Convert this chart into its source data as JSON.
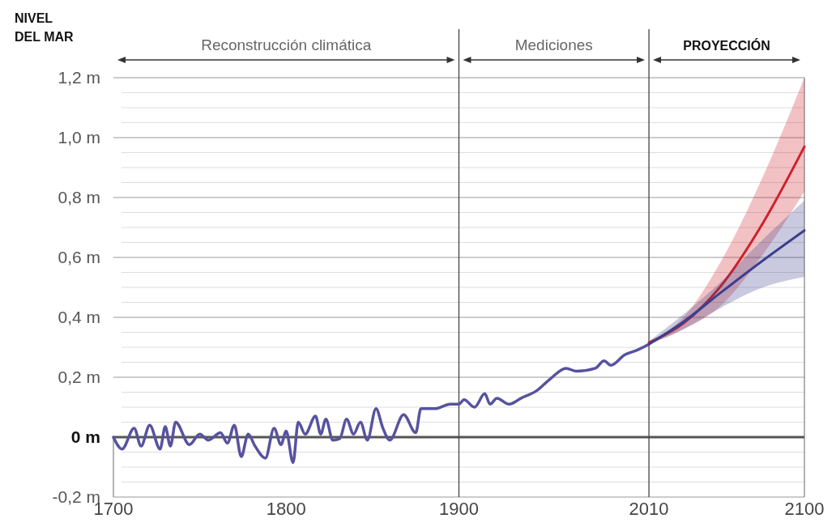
{
  "chart_data": {
    "type": "line",
    "ylabel": "NIVEL DEL MAR",
    "xlim": [
      1700,
      2100
    ],
    "xticks": [
      1700,
      1800,
      1900,
      2010,
      2100
    ],
    "ylim": [
      -0.2,
      1.2
    ],
    "yticks": [
      {
        "value": -0.2,
        "label": "-0,2 m"
      },
      {
        "value": -0.15,
        "label": null
      },
      {
        "value": -0.1,
        "label": null
      },
      {
        "value": -0.05,
        "label": null
      },
      {
        "value": 0,
        "label": "0 m"
      },
      {
        "value": 0.05,
        "label": null
      },
      {
        "value": 0.1,
        "label": null
      },
      {
        "value": 0.15,
        "label": null
      },
      {
        "value": 0.2,
        "label": "0,2 m"
      },
      {
        "value": 0.25,
        "label": null
      },
      {
        "value": 0.3,
        "label": null
      },
      {
        "value": 0.35,
        "label": null
      },
      {
        "value": 0.4,
        "label": "0,4 m"
      },
      {
        "value": 0.45,
        "label": null
      },
      {
        "value": 0.5,
        "label": null
      },
      {
        "value": 0.55,
        "label": null
      },
      {
        "value": 0.6,
        "label": "0,6 m"
      },
      {
        "value": 0.65,
        "label": null
      },
      {
        "value": 0.7,
        "label": null
      },
      {
        "value": 0.75,
        "label": null
      },
      {
        "value": 0.8,
        "label": "0,8 m"
      },
      {
        "value": 0.85,
        "label": null
      },
      {
        "value": 0.9,
        "label": null
      },
      {
        "value": 0.95,
        "label": null
      },
      {
        "value": 1.0,
        "label": "1,0 m"
      },
      {
        "value": 1.05,
        "label": null
      },
      {
        "value": 1.1,
        "label": null
      },
      {
        "value": 1.15,
        "label": null
      },
      {
        "value": 1.2,
        "label": "1,2 m"
      }
    ],
    "grid": "y",
    "line_style": "solid",
    "marker": "none",
    "ref_lines": [
      {
        "axis": "y",
        "value": 0,
        "label": null,
        "color": "#555555"
      },
      {
        "axis": "x",
        "value": 1900,
        "label": null,
        "color": "#444444"
      },
      {
        "axis": "x",
        "value": 2010,
        "label": null,
        "color": "#444444"
      }
    ],
    "annotations": [
      "Reconstrucción climática",
      "Mediciones",
      "PROYECCIÓN"
    ],
    "series": [
      {
        "color": "#57529f",
        "x": [
          1700,
          1705,
          1712,
          1716,
          1721,
          1727,
          1730,
          1733,
          1736,
          1744,
          1750,
          1755,
          1762,
          1766,
          1770,
          1774,
          1778,
          1782,
          1788,
          1793,
          1797,
          1800,
          1804,
          1807,
          1811,
          1817,
          1820,
          1823,
          1827,
          1831,
          1835,
          1839,
          1843,
          1847,
          1852,
          1856,
          1860,
          1868,
          1875,
          1878,
          1886,
          1895,
          1900,
          1903,
          1909,
          1915,
          1918,
          1922,
          1929,
          1936,
          1945,
          1953,
          1962,
          1968,
          1979,
          1984,
          1988,
          1996,
          2003,
          2010
        ],
        "values": [
          0.0,
          -0.04,
          0.03,
          -0.03,
          0.04,
          -0.04,
          0.035,
          -0.03,
          0.05,
          -0.025,
          0.01,
          -0.01,
          0.015,
          -0.02,
          0.04,
          -0.065,
          0.01,
          -0.03,
          -0.07,
          0.03,
          -0.025,
          0.02,
          -0.085,
          0.05,
          0.01,
          0.07,
          0.01,
          0.06,
          -0.01,
          -0.005,
          0.06,
          0.01,
          0.05,
          -0.01,
          0.095,
          0.03,
          -0.01,
          0.075,
          0.015,
          0.095,
          0.095,
          0.11,
          0.11,
          0.125,
          0.1,
          0.145,
          0.11,
          0.13,
          0.11,
          0.13,
          0.155,
          0.195,
          0.23,
          0.22,
          0.23,
          0.255,
          0.24,
          0.275,
          0.29,
          0.31
        ]
      },
      {
        "color": "#d0202a",
        "x": [
          2010,
          2030,
          2051,
          2076,
          2100
        ],
        "values": [
          0.315,
          0.38,
          0.5,
          0.715,
          0.97
        ],
        "lower": [
          0.31,
          0.36,
          0.435,
          0.61,
          0.82
        ],
        "upper": [
          0.32,
          0.4,
          0.58,
          0.87,
          1.2
        ]
      },
      {
        "color": "#3d3f8c",
        "x": [
          2010,
          2030,
          2051,
          2076,
          2100
        ],
        "values": [
          0.31,
          0.385,
          0.48,
          0.59,
          0.69
        ],
        "lower": [
          0.31,
          0.36,
          0.43,
          0.5,
          0.535
        ],
        "upper": [
          0.32,
          0.41,
          0.515,
          0.66,
          0.79
        ]
      }
    ]
  }
}
